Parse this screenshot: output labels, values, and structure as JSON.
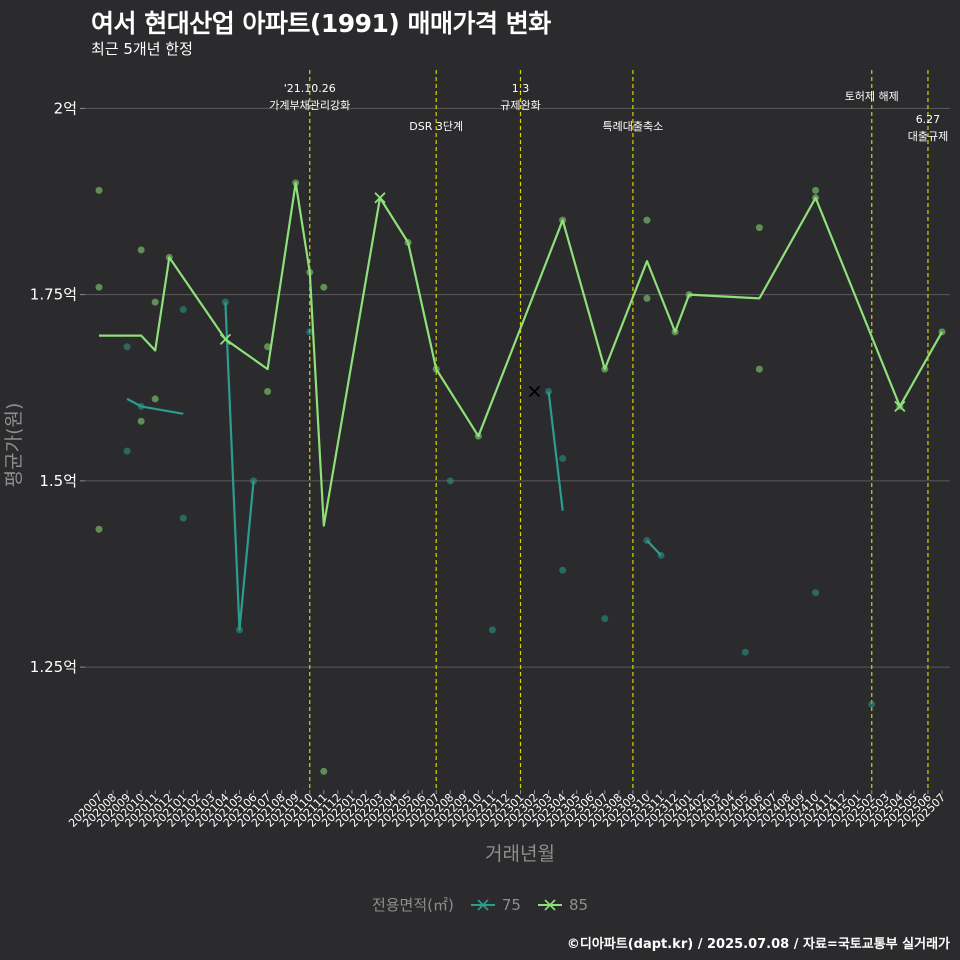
{
  "title": "여서 현대산업 아파트(1991) 매매가격 변화",
  "subtitle": "최근 5개년 한정",
  "caption": "©디아파트(dapt.kr) / 2025.07.08 / 자료=국토교통부 실거래가",
  "legend": {
    "title": "전용면적(㎡)"
  },
  "colors": {
    "background": "#2b2a2c",
    "grid": "#5a5a5a",
    "event_line": "#d4d400",
    "series_75": "#2a9d8f",
    "series_85": "#8ee07a"
  },
  "chart_data": {
    "type": "line",
    "xlabel": "거래년월",
    "ylabel": "평균가(원)",
    "y_unit_note": "억 = 100,000,000 원",
    "ylim": [
      1.085,
      2.065
    ],
    "y_ticks": [
      {
        "value": 1.25,
        "label": "1.25억"
      },
      {
        "value": 1.5,
        "label": "1.5억"
      },
      {
        "value": 1.75,
        "label": "1.75억"
      },
      {
        "value": 2.0,
        "label": "2억"
      }
    ],
    "categories": [
      "202007",
      "202008",
      "202009",
      "202010",
      "202011",
      "202012",
      "202101",
      "202102",
      "202103",
      "202104",
      "202105",
      "202106",
      "202107",
      "202108",
      "202109",
      "202110",
      "202111",
      "202112",
      "202201",
      "202202",
      "202203",
      "202204",
      "202205",
      "202206",
      "202207",
      "202208",
      "202209",
      "202210",
      "202211",
      "202212",
      "202301",
      "202302",
      "202303",
      "202304",
      "202305",
      "202306",
      "202307",
      "202308",
      "202309",
      "202310",
      "202311",
      "202312",
      "202401",
      "202402",
      "202403",
      "202404",
      "202405",
      "202406",
      "202407",
      "202408",
      "202409",
      "202410",
      "202411",
      "202412",
      "202501",
      "202502",
      "202503",
      "202504",
      "202505",
      "202506",
      "202507"
    ],
    "events": [
      {
        "x": "202110",
        "label": "'21.10.26\n가계부채관리강화",
        "tier": 0
      },
      {
        "x": "202207",
        "label": "DSR 3단계",
        "tier": 1
      },
      {
        "x": "202301",
        "label": "1.3\n규제완화",
        "tier": 0
      },
      {
        "x": "202309",
        "label": "특례대출축소",
        "tier": 1
      },
      {
        "x": "202502",
        "label": "토허제 해제",
        "tier": 0
      },
      {
        "x": "202506",
        "label": "6.27\n대출규제",
        "tier": 2
      }
    ],
    "series": [
      {
        "name": "75",
        "line_segments": [
          [
            [
              "202009",
              1.61
            ],
            [
              "202010",
              1.6
            ],
            [
              "202101",
              1.59
            ]
          ],
          [
            [
              "202104",
              1.74
            ],
            [
              "202105",
              1.3
            ],
            [
              "202106",
              1.5
            ]
          ],
          [
            [
              "202303",
              1.62
            ],
            [
              "202304",
              1.46
            ]
          ],
          [
            [
              "202310",
              1.42
            ],
            [
              "202311",
              1.4
            ]
          ]
        ],
        "points": [
          [
            "202009",
            1.68
          ],
          [
            "202009",
            1.54
          ],
          [
            "202010",
            1.6
          ],
          [
            "202101",
            1.73
          ],
          [
            "202101",
            1.45
          ],
          [
            "202104",
            1.74
          ],
          [
            "202105",
            1.3
          ],
          [
            "202106",
            1.5
          ],
          [
            "202110",
            1.7
          ],
          [
            "202208",
            1.5
          ],
          [
            "202211",
            1.3
          ],
          [
            "202303",
            1.62
          ],
          [
            "202304",
            1.53
          ],
          [
            "202304",
            1.38
          ],
          [
            "202307",
            1.315
          ],
          [
            "202310",
            1.42
          ],
          [
            "202311",
            1.4
          ],
          [
            "202405",
            1.27
          ],
          [
            "202410",
            1.35
          ],
          [
            "202502",
            1.2
          ]
        ],
        "markers": [
          [
            "202302",
            1.62
          ]
        ]
      },
      {
        "name": "85",
        "line_segments": [
          [
            [
              "202007",
              1.695
            ],
            [
              "202010",
              1.695
            ],
            [
              "202011",
              1.675
            ],
            [
              "202012",
              1.8
            ],
            [
              "202104",
              1.69
            ],
            [
              "202107",
              1.65
            ],
            [
              "202109",
              1.9
            ],
            [
              "202110",
              1.78
            ],
            [
              "202111",
              1.44
            ],
            [
              "202203",
              1.88
            ],
            [
              "202205",
              1.82
            ],
            [
              "202207",
              1.65
            ],
            [
              "202210",
              1.56
            ],
            [
              "202304",
              1.85
            ],
            [
              "202307",
              1.65
            ],
            [
              "202310",
              1.795
            ],
            [
              "202312",
              1.7
            ],
            [
              "202401",
              1.75
            ],
            [
              "202406",
              1.745
            ],
            [
              "202410",
              1.88
            ],
            [
              "202504",
              1.6
            ],
            [
              "202507",
              1.7
            ]
          ]
        ],
        "points": [
          [
            "202007",
            1.89
          ],
          [
            "202007",
            1.76
          ],
          [
            "202007",
            1.435
          ],
          [
            "202010",
            1.81
          ],
          [
            "202010",
            1.58
          ],
          [
            "202011",
            1.74
          ],
          [
            "202011",
            1.61
          ],
          [
            "202012",
            1.8
          ],
          [
            "202107",
            1.68
          ],
          [
            "202107",
            1.62
          ],
          [
            "202109",
            1.9
          ],
          [
            "202110",
            1.78
          ],
          [
            "202111",
            1.76
          ],
          [
            "202111",
            1.11
          ],
          [
            "202205",
            1.82
          ],
          [
            "202207",
            1.65
          ],
          [
            "202210",
            1.56
          ],
          [
            "202304",
            1.85
          ],
          [
            "202307",
            1.65
          ],
          [
            "202310",
            1.85
          ],
          [
            "202310",
            1.745
          ],
          [
            "202312",
            1.7
          ],
          [
            "202401",
            1.75
          ],
          [
            "202406",
            1.84
          ],
          [
            "202406",
            1.65
          ],
          [
            "202410",
            1.89
          ],
          [
            "202410",
            1.88
          ],
          [
            "202504",
            1.6
          ],
          [
            "202507",
            1.7
          ]
        ],
        "markers": [
          [
            "202104",
            1.69
          ],
          [
            "202203",
            1.88
          ],
          [
            "202504",
            1.6
          ]
        ]
      }
    ]
  }
}
